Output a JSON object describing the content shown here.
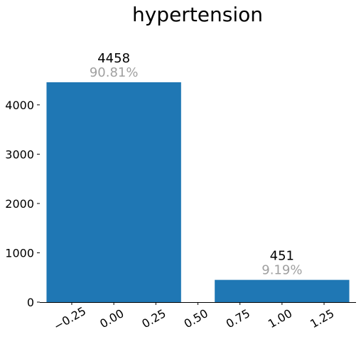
{
  "chart_data": {
    "type": "bar",
    "title": "hypertension",
    "xlabel": "",
    "ylabel": "",
    "x": [
      0,
      1
    ],
    "values": [
      4458,
      451
    ],
    "value_labels": [
      "4458",
      "451"
    ],
    "percent_labels": [
      "90.81%",
      "9.19%"
    ],
    "bar_width": 0.8,
    "xlim": [
      -0.44,
      1.44
    ],
    "ylim": [
      0,
      4458
    ],
    "x_ticks": [
      -0.25,
      0.0,
      0.25,
      0.5,
      0.75,
      1.0,
      1.25
    ],
    "x_tick_labels": [
      "−0.25",
      "0.00",
      "0.25",
      "0.50",
      "0.75",
      "1.00",
      "1.25"
    ],
    "y_ticks": [
      0,
      1000,
      2000,
      3000,
      4000
    ],
    "y_tick_labels": [
      "0",
      "1000",
      "2000",
      "3000",
      "4000"
    ],
    "grid": false,
    "colors": {
      "bar": "#1f77b4",
      "percent": "#a0a0a0",
      "text": "#000000"
    }
  }
}
